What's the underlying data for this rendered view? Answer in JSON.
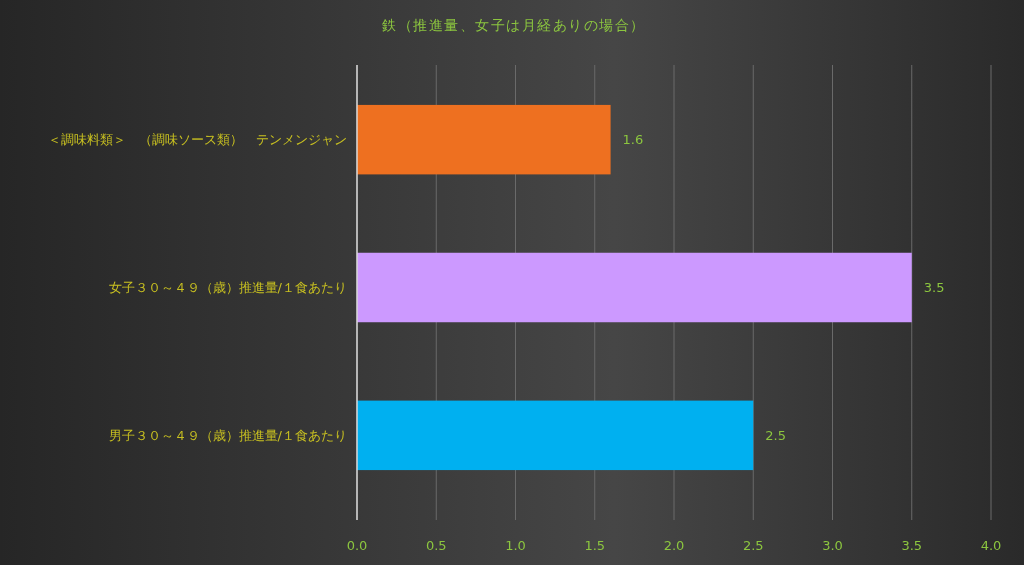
{
  "chart_data": {
    "type": "bar",
    "orientation": "horizontal",
    "title": "鉄（推進量、女子は月経ありの場合）",
    "categories": [
      "＜調味料類＞　（調味ソース類）　テンメンジャン",
      "女子３０～４９（歳）推進量/１食あたり",
      "男子３０～４９（歳）推進量/１食あたり"
    ],
    "values": [
      1.6,
      3.5,
      2.5
    ],
    "colors": [
      "#ee7020",
      "#cc99ff",
      "#00b0f0"
    ],
    "xlim": [
      0,
      4
    ],
    "xticks": [
      {
        "value": 0,
        "label": "0.0"
      },
      {
        "value": 0.5,
        "label": "0.5"
      },
      {
        "value": 1,
        "label": "1.0"
      },
      {
        "value": 1.5,
        "label": "1.5"
      },
      {
        "value": 2,
        "label": "2.0"
      },
      {
        "value": 2.5,
        "label": "2.5"
      },
      {
        "value": 3,
        "label": "3.0"
      },
      {
        "value": 3.5,
        "label": "3.5"
      },
      {
        "value": 4,
        "label": "4.0"
      }
    ],
    "grid": "x",
    "data_labels": true
  }
}
